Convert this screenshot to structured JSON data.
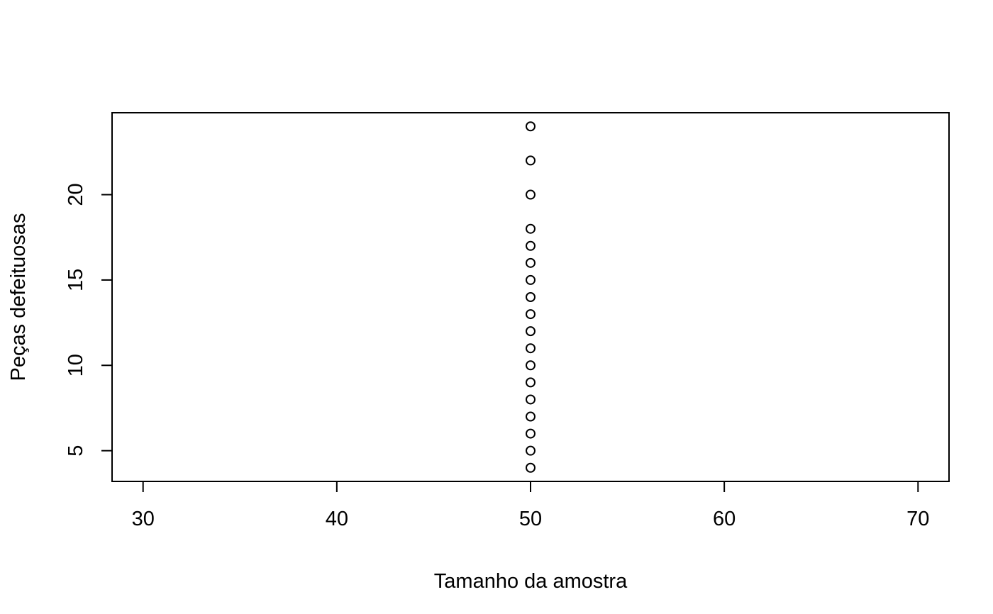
{
  "chart_data": {
    "type": "scatter",
    "title": "",
    "xlabel": "Tamanho da amostra",
    "ylabel": "Peças defeituosas",
    "xlim": [
      28.4,
      71.6
    ],
    "ylim": [
      3.2,
      24.8
    ],
    "x_ticks": [
      30,
      40,
      50,
      60,
      70
    ],
    "x_tick_labels": [
      "30",
      "40",
      "50",
      "60",
      "70"
    ],
    "y_ticks": [
      5,
      10,
      15,
      20
    ],
    "y_tick_labels": [
      "5",
      "10",
      "15",
      "20"
    ],
    "grid": false,
    "legend": "none",
    "marker": "open-circle",
    "colors": {
      "points": "#000000",
      "axes": "#000000",
      "background": "#ffffff"
    },
    "series": [
      {
        "x": [
          50,
          50,
          50,
          50,
          50,
          50,
          50,
          50,
          50,
          50,
          50,
          50,
          50,
          50,
          50,
          50,
          50,
          50
        ],
        "y": [
          4,
          5,
          6,
          7,
          8,
          9,
          10,
          11,
          12,
          13,
          14,
          15,
          16,
          17,
          18,
          20,
          22,
          24
        ]
      }
    ]
  }
}
